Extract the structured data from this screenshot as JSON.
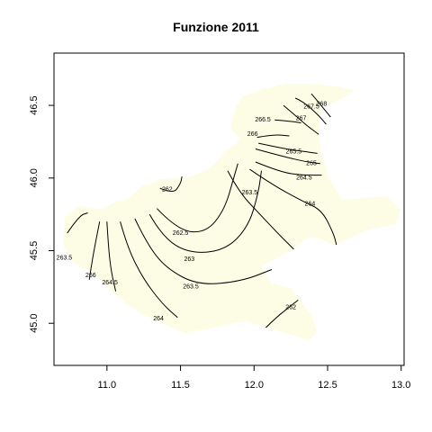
{
  "chart_data": {
    "type": "contour",
    "title": "Funzione 2011",
    "xlabel": "",
    "ylabel": "",
    "xlim": [
      10.64,
      13.02
    ],
    "ylim": [
      44.71,
      46.86
    ],
    "x_ticks": [
      11.0,
      11.5,
      12.0,
      12.5,
      13.0
    ],
    "x_tick_labels": [
      "11.0",
      "11.5",
      "12.0",
      "12.5",
      "13.0"
    ],
    "y_ticks": [
      45.0,
      45.5,
      46.0,
      46.5
    ],
    "y_tick_labels": [
      "45.0",
      "45.5",
      "46.0",
      "46.5"
    ],
    "region_fill": "#fdfde6",
    "line_color": "#000000",
    "contours": [
      {
        "label": "263.5",
        "points": [
          [
            10.73,
            45.62
          ],
          [
            10.81,
            45.74
          ],
          [
            10.87,
            45.76
          ]
        ],
        "label_at": [
          10.71,
          45.45
        ]
      },
      {
        "label": "266",
        "points": [
          [
            10.88,
            45.3
          ],
          [
            10.9,
            45.44
          ],
          [
            10.95,
            45.7
          ]
        ],
        "label_at": [
          10.89,
          45.33
        ]
      },
      {
        "label": "264.5",
        "points": [
          [
            11.0,
            45.7
          ],
          [
            11.01,
            45.52
          ],
          [
            11.03,
            45.35
          ],
          [
            11.06,
            45.22
          ]
        ],
        "label_at": [
          11.02,
          45.28
        ]
      },
      {
        "label": "264",
        "points": [
          [
            11.09,
            45.7
          ],
          [
            11.14,
            45.52
          ],
          [
            11.25,
            45.3
          ],
          [
            11.38,
            45.13
          ],
          [
            11.48,
            45.04
          ]
        ],
        "label_at": [
          11.35,
          45.03
        ]
      },
      {
        "label": "263.5",
        "points": [
          [
            11.19,
            45.72
          ],
          [
            11.27,
            45.55
          ],
          [
            11.4,
            45.38
          ],
          [
            11.62,
            45.26
          ],
          [
            11.92,
            45.29
          ],
          [
            12.12,
            45.37
          ]
        ],
        "label_at": [
          11.57,
          45.25
        ]
      },
      {
        "label": "263",
        "points": [
          [
            11.29,
            45.75
          ],
          [
            11.38,
            45.59
          ],
          [
            11.56,
            45.48
          ],
          [
            11.8,
            45.5
          ],
          [
            11.96,
            45.66
          ],
          [
            12.03,
            45.9
          ],
          [
            12.05,
            46.05
          ]
        ],
        "label_at": [
          11.56,
          45.44
        ]
      },
      {
        "label": "262.5",
        "points": [
          [
            11.34,
            45.79
          ],
          [
            11.48,
            45.64
          ],
          [
            11.67,
            45.62
          ],
          [
            11.8,
            45.78
          ],
          [
            11.87,
            46.03
          ],
          [
            11.89,
            46.1
          ]
        ],
        "label_at": [
          11.5,
          45.62
        ]
      },
      {
        "label": "262",
        "points": [
          [
            11.36,
            45.93
          ],
          [
            11.45,
            45.89
          ],
          [
            11.5,
            45.96
          ],
          [
            11.51,
            46.01
          ]
        ],
        "label_at": [
          11.41,
          45.92
        ]
      },
      {
        "label": "263.5",
        "points": [
          [
            11.82,
            46.05
          ],
          [
            11.9,
            45.9
          ],
          [
            12.04,
            45.75
          ],
          [
            12.18,
            45.6
          ],
          [
            12.27,
            45.51
          ]
        ],
        "label_at": [
          11.97,
          45.9
        ]
      },
      {
        "label": "264",
        "points": [
          [
            11.97,
            46.06
          ],
          [
            12.13,
            45.95
          ],
          [
            12.33,
            45.84
          ],
          [
            12.46,
            45.78
          ],
          [
            12.54,
            45.62
          ],
          [
            12.56,
            45.54
          ]
        ],
        "label_at": [
          12.38,
          45.82
        ]
      },
      {
        "label": "264.5",
        "points": [
          [
            12.01,
            46.11
          ],
          [
            12.18,
            46.04
          ],
          [
            12.33,
            46.02
          ],
          [
            12.46,
            46.02
          ]
        ],
        "label_at": [
          12.34,
          46.0
        ]
      },
      {
        "label": "265",
        "points": [
          [
            12.01,
            46.2
          ],
          [
            12.19,
            46.15
          ],
          [
            12.36,
            46.11
          ],
          [
            12.45,
            46.1
          ]
        ],
        "label_at": [
          12.39,
          46.1
        ]
      },
      {
        "label": "265.5",
        "points": [
          [
            12.03,
            46.24
          ],
          [
            12.21,
            46.2
          ],
          [
            12.36,
            46.18
          ],
          [
            12.43,
            46.17
          ]
        ],
        "label_at": [
          12.27,
          46.18
        ]
      },
      {
        "label": "266",
        "points": [
          [
            12.02,
            46.28
          ],
          [
            12.14,
            46.3
          ],
          [
            12.24,
            46.29
          ]
        ],
        "label_at": [
          11.99,
          46.3
        ]
      },
      {
        "label": "266.5",
        "points": [
          [
            12.14,
            46.4
          ],
          [
            12.26,
            46.39
          ],
          [
            12.32,
            46.38
          ]
        ],
        "label_at": [
          12.06,
          46.4
        ]
      },
      {
        "label": "267",
        "points": [
          [
            12.2,
            46.5
          ],
          [
            12.27,
            46.44
          ],
          [
            12.36,
            46.36
          ],
          [
            12.44,
            46.3
          ]
        ],
        "label_at": [
          12.32,
          46.41
        ]
      },
      {
        "label": "267.5",
        "points": [
          [
            12.28,
            46.55
          ],
          [
            12.33,
            46.53
          ],
          [
            12.44,
            46.43
          ],
          [
            12.49,
            46.37
          ]
        ],
        "label_at": [
          12.39,
          46.49
        ]
      },
      {
        "label": "268",
        "points": [
          [
            12.39,
            46.58
          ],
          [
            12.44,
            46.52
          ],
          [
            12.52,
            46.42
          ]
        ],
        "label_at": [
          12.46,
          46.51
        ]
      },
      {
        "label": "262",
        "points": [
          [
            12.08,
            44.97
          ],
          [
            12.15,
            45.04
          ],
          [
            12.25,
            45.12
          ],
          [
            12.3,
            45.16
          ]
        ],
        "label_at": [
          12.25,
          45.11
        ]
      }
    ]
  }
}
